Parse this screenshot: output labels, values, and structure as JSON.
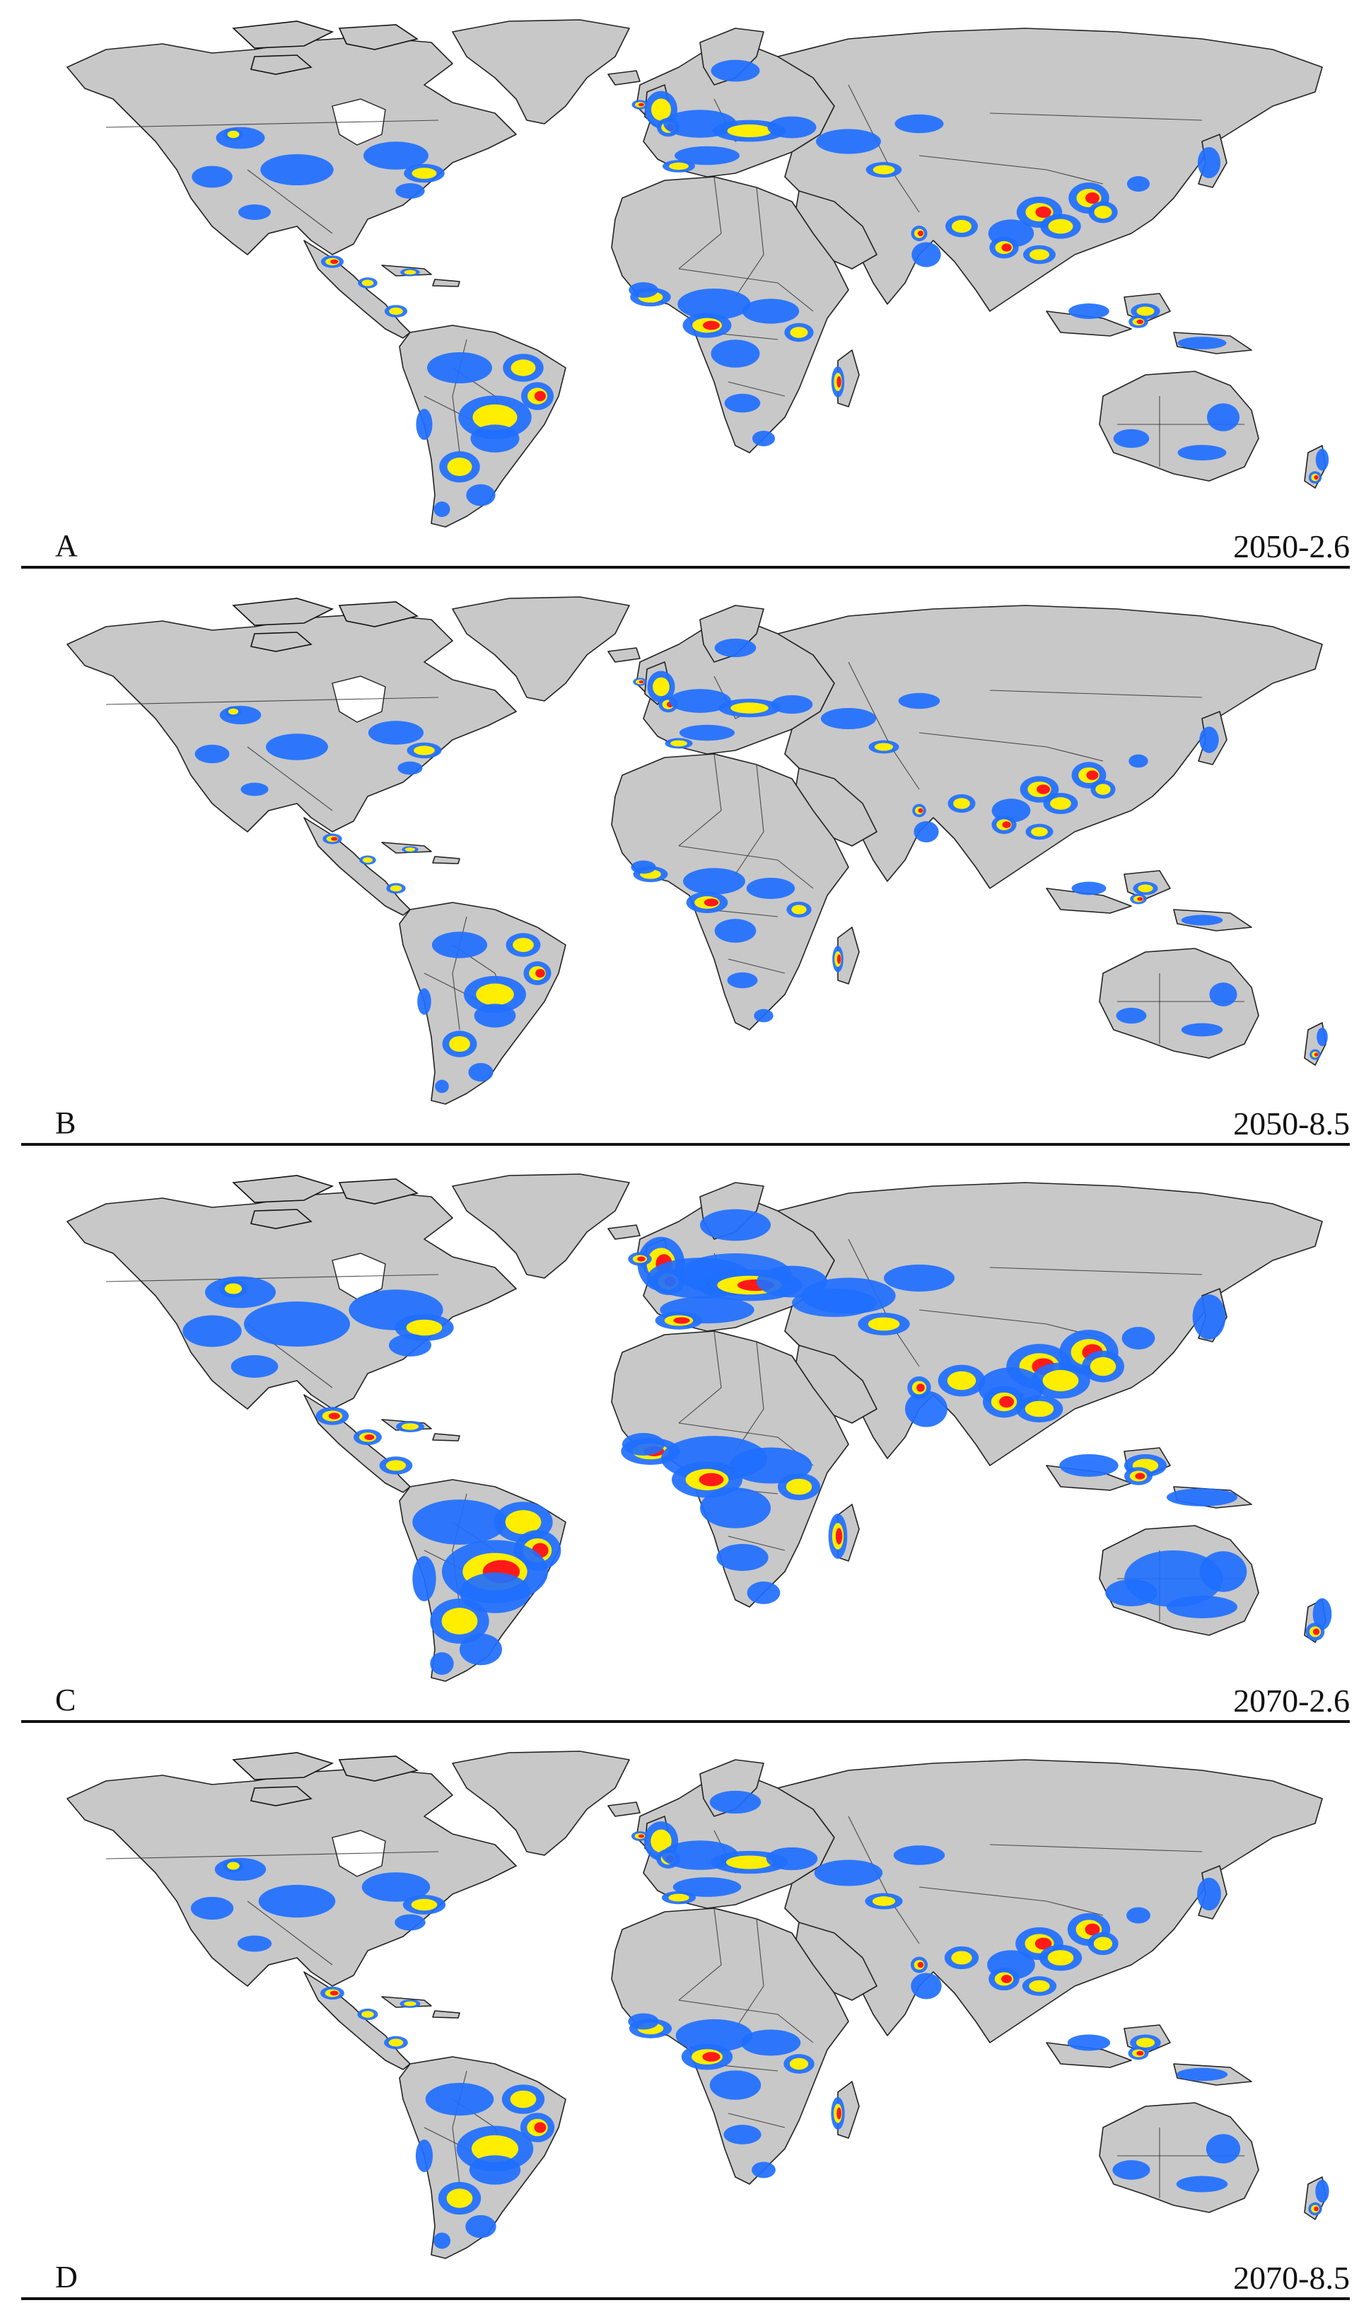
{
  "colors": {
    "ocean": "#ffffff",
    "land": "#c8c8c8",
    "borders": "#222222",
    "low_suitability": "#1f6fff",
    "medium_suitability": "#ffee00",
    "high_suitability": "#ff1a1a"
  },
  "panels": [
    {
      "letter": "A",
      "scenario": "2050-2.6",
      "intensity": 1.0
    },
    {
      "letter": "B",
      "scenario": "2050-8.5",
      "intensity": 0.85
    },
    {
      "letter": "C",
      "scenario": "2070-2.6",
      "intensity": 1.45
    },
    {
      "letter": "D",
      "scenario": "2070-8.5",
      "intensity": 1.05
    }
  ]
}
